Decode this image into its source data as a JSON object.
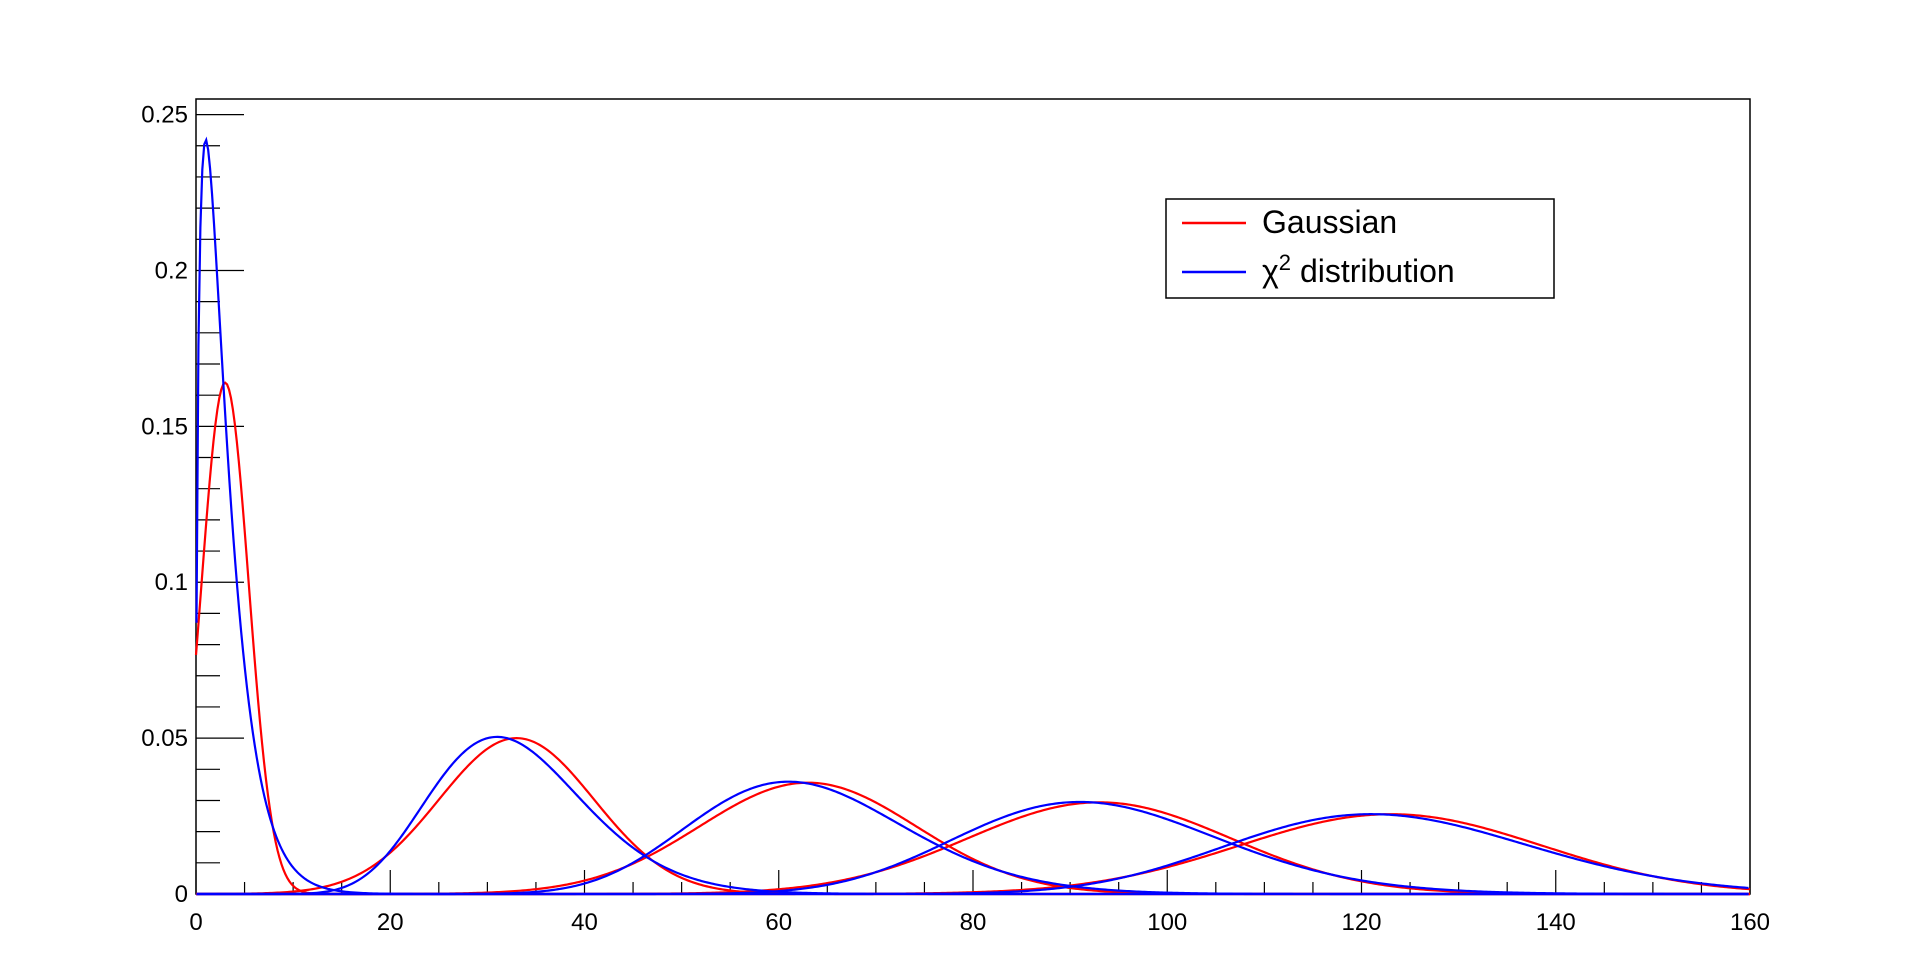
{
  "chart_data": {
    "type": "line",
    "title": "",
    "xlabel": "",
    "ylabel": "",
    "xlim": [
      0,
      160
    ],
    "ylim": [
      0,
      0.255
    ],
    "grid": false,
    "legend_position": "top-right",
    "x_ticks": [
      "0",
      "20",
      "40",
      "60",
      "80",
      "100",
      "120",
      "140",
      "160"
    ],
    "y_ticks": [
      "0",
      "0.05",
      "0.1",
      "0.15",
      "0.2",
      "0.25"
    ],
    "series": [
      {
        "name": "Gaussian",
        "color": "#ff0000",
        "curves": [
          {
            "peak_x": 3,
            "peak_y": 0.164
          },
          {
            "peak_x": 33,
            "peak_y": 0.05
          },
          {
            "peak_x": 63,
            "peak_y": 0.0357
          },
          {
            "peak_x": 93,
            "peak_y": 0.0294
          },
          {
            "peak_x": 123,
            "peak_y": 0.0256
          }
        ]
      },
      {
        "name": "χ² distribution",
        "color": "#0000ff",
        "curves": [
          {
            "peak_x": 1,
            "peak_y": 0.242
          },
          {
            "peak_x": 31,
            "peak_y": 0.0505
          },
          {
            "peak_x": 61,
            "peak_y": 0.036
          },
          {
            "peak_x": 91,
            "peak_y": 0.0295
          },
          {
            "peak_x": 121,
            "peak_y": 0.0256
          }
        ]
      }
    ]
  },
  "legend": {
    "entries": [
      {
        "base": "Gaussian",
        "sup": ""
      },
      {
        "base": "χ",
        "sup": "2",
        "rest": " distribution"
      }
    ]
  }
}
